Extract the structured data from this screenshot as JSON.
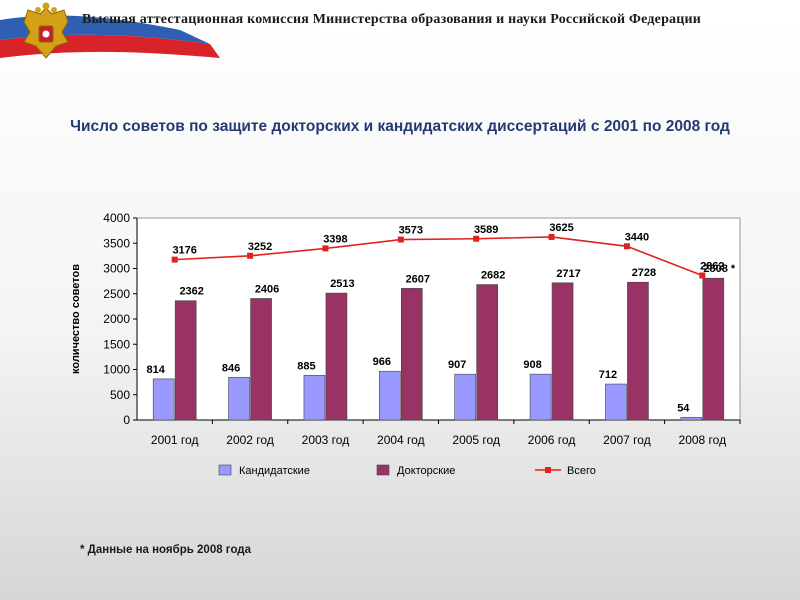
{
  "header": {
    "title": "Высшая аттестационная комиссия Министерства образования и науки Российской Федерации",
    "emblem_icon": "coat-of-arms-icon",
    "flag_colors": [
      "#ffffff",
      "#2e5fb3",
      "#d8232a"
    ]
  },
  "page_title": "Число советов по защите докторских и кандидатских диссертаций с 2001 по 2008 год",
  "footnote": "* Данные на ноябрь 2008 года",
  "chart_data": {
    "type": "bar",
    "title": "",
    "xlabel": "",
    "ylabel": "количество советов",
    "ylim": [
      0,
      4000
    ],
    "ytick_step": 500,
    "ytick_labels": [
      "0",
      "500",
      "1000",
      "1500",
      "2000",
      "2500",
      "3000",
      "3500",
      "4000"
    ],
    "categories": [
      "2001 год",
      "2002 год",
      "2003 год",
      "2004 год",
      "2005 год",
      "2006 год",
      "2007 год",
      "2008 год"
    ],
    "series": [
      {
        "name": "Кандидатские",
        "kind": "bar",
        "color": "#9999ff",
        "values": [
          814,
          846,
          885,
          966,
          907,
          908,
          712,
          54
        ],
        "labels": [
          "814",
          "846",
          "885",
          "966",
          "907",
          "908",
          "712",
          "54"
        ]
      },
      {
        "name": "Докторские",
        "kind": "bar",
        "color": "#993366",
        "values": [
          2362,
          2406,
          2513,
          2607,
          2682,
          2717,
          2728,
          2808
        ],
        "labels": [
          "2362",
          "2406",
          "2513",
          "2607",
          "2682",
          "2717",
          "2728",
          "2808 *"
        ]
      },
      {
        "name": "Всего",
        "kind": "line",
        "color": "#e0231f",
        "values": [
          3176,
          3252,
          3398,
          3573,
          3589,
          3625,
          3440,
          2862
        ],
        "labels": [
          "3176",
          "3252",
          "3398",
          "3573",
          "3589",
          "3625",
          "3440",
          "2862"
        ]
      }
    ],
    "legend_position": "bottom"
  }
}
